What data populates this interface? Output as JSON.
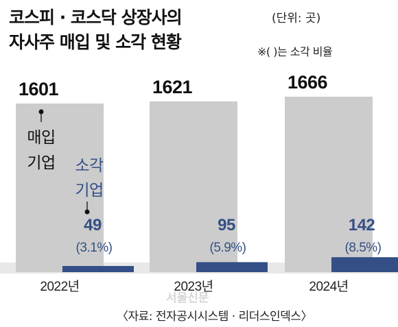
{
  "title": [
    "코스피 · 코스닥 상장사의",
    "자사주 매입 및 소각 현황"
  ],
  "unit": "(단위: 곳)",
  "note": "※(  )는 소각 비율",
  "source": "〈자료: 전자공시시스템 · 리더스인덱스〉",
  "watermark": "서울신문",
  "colors": {
    "buy": "#cccccc",
    "retire": "#344f85",
    "axis": "#e8e8e8"
  },
  "chart_data": {
    "type": "bar",
    "categories": [
      "2022년",
      "2023년",
      "2024년"
    ],
    "ylim": [
      0,
      1666
    ],
    "series": [
      {
        "name": "매입기업",
        "values": [
          1601,
          1621,
          1666
        ],
        "labels": [
          "1601",
          "1621",
          "1666"
        ]
      },
      {
        "name": "소각기업",
        "values": [
          49,
          95,
          142
        ],
        "labels": [
          "49",
          "95",
          "142"
        ],
        "ratios": [
          "(3.1%)",
          "(5.9%)",
          "(8.5%)"
        ]
      }
    ],
    "annotations": {
      "buy_label": [
        "매입",
        "기업"
      ],
      "retire_label": [
        "소각",
        "기업"
      ]
    }
  }
}
